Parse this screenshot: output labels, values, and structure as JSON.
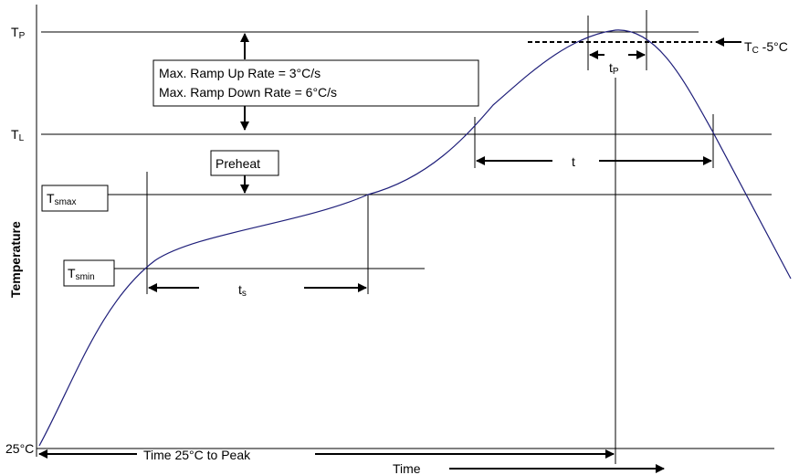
{
  "levels": {
    "tp": {
      "main": "T",
      "sub": "P"
    },
    "tl": {
      "main": "T",
      "sub": "L"
    },
    "tsmax": {
      "main": "T",
      "sub": "smax"
    },
    "tsmin": {
      "main": "T",
      "sub": "smin"
    },
    "t25": "25°C"
  },
  "tc_label": {
    "main": "T",
    "sub": "C",
    "rest": " -5°C"
  },
  "ramp_box": {
    "line1": "Max. Ramp Up Rate = 3°C/s",
    "line2": "Max. Ramp Down Rate = 6°C/s"
  },
  "preheat": "Preheat",
  "intervals": {
    "ts": {
      "main": "t",
      "sub": "s"
    },
    "tp": {
      "main": "t",
      "sub": "P"
    },
    "t": "t"
  },
  "axis": {
    "ylabel": "Temperature",
    "time_to_peak": "Time 25°C to Peak",
    "xlabel": "Time"
  },
  "colors": {
    "curve": "#1f1f7a",
    "lines": "#000000"
  }
}
